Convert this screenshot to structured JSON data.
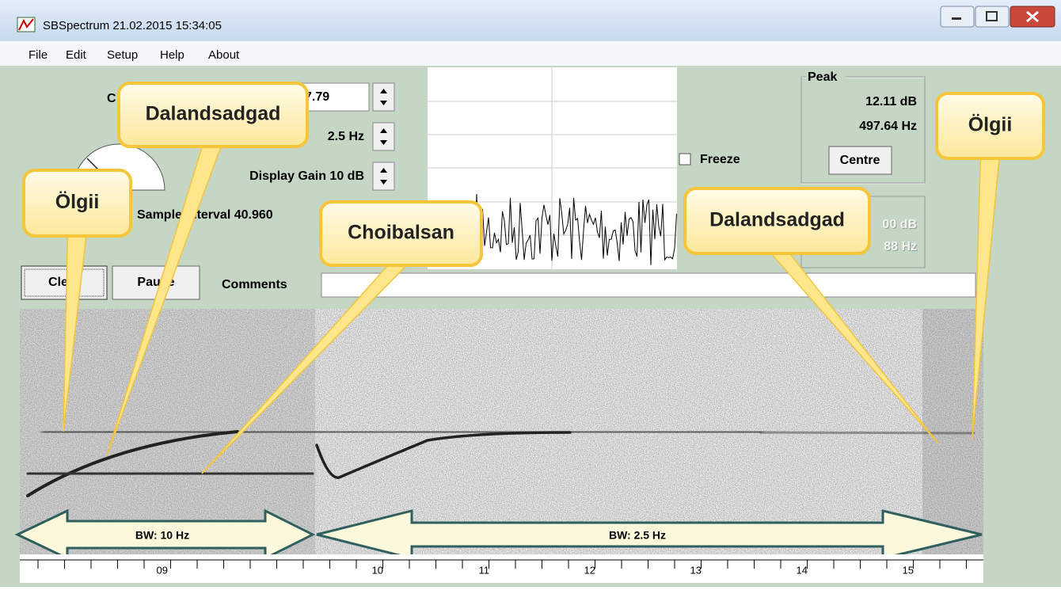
{
  "window": {
    "title": "SBSpectrum 21.02.2015 15:34:05"
  },
  "menu": [
    "File",
    "Edit",
    "Setup",
    "Help",
    "About"
  ],
  "controls": {
    "centre_label": "C",
    "centre_value": "7.79",
    "bandwidth_value": "2.5 Hz",
    "display_gain": "Display Gain 10 dB",
    "sample_interval": "Sample Interval 40.960",
    "freeze": "Freeze",
    "clear": "Clear",
    "pause": "Pause",
    "comments": "Comments"
  },
  "peak": {
    "label": "Peak",
    "level": "12.11 dB",
    "frequency": "497.64 Hz",
    "button": "Centre"
  },
  "second_readout": {
    "level": "00 dB",
    "frequency": "88 Hz"
  },
  "annotations": [
    "Ölgii",
    "Dalandsadgad",
    "Choibalsan",
    "Dalandsadgad",
    "Ölgii"
  ],
  "bands": [
    "BW: 10 Hz",
    "BW: 2.5 Hz"
  ],
  "time_axis": [
    "09",
    "10",
    "11",
    "12",
    "13",
    "14",
    "15"
  ]
}
